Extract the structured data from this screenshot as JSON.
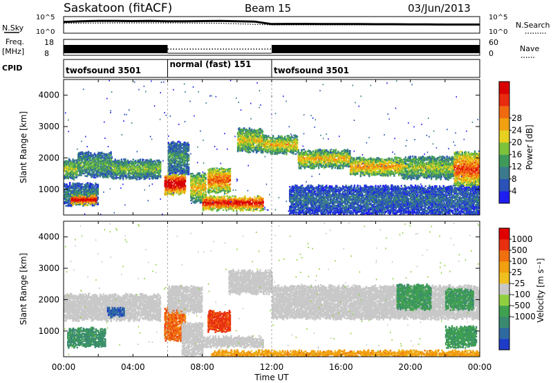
{
  "chart_data": [
    {
      "type": "line",
      "title": "Saskatoon (fitACF)",
      "beam": "Beam 15",
      "date": "03/Jun/2013",
      "left_label": "N.Sky",
      "right_label": "N.Search",
      "left_ticks": [
        "10^5",
        "10^0"
      ],
      "right_ticks": [
        "10^5",
        "10^0"
      ],
      "series": [
        {
          "name": "N.Sky",
          "style": "solid",
          "x": [
            0,
            1,
            2,
            3,
            4,
            5,
            6,
            7,
            8,
            9,
            10,
            11,
            12,
            13,
            14,
            15,
            16,
            17,
            18,
            19,
            20,
            21,
            22,
            23,
            24
          ],
          "values": [
            0.68,
            0.72,
            0.74,
            0.74,
            0.73,
            0.74,
            0.72,
            0.72,
            0.73,
            0.74,
            0.72,
            0.7,
            0.55,
            0.56,
            0.56,
            0.55,
            0.55,
            0.55,
            0.54,
            0.54,
            0.53,
            0.53,
            0.52,
            0.52,
            0.52
          ]
        },
        {
          "name": "N.Search",
          "style": "dotted",
          "x": [
            0,
            3,
            6,
            9,
            12,
            15,
            18,
            21,
            24
          ],
          "values": [
            0.6,
            0.62,
            0.62,
            0.6,
            0.5,
            0.5,
            0.5,
            0.5,
            0.5
          ]
        }
      ]
    },
    {
      "type": "line",
      "left_label": "Freq.",
      "left_unit": "[MHz]",
      "right_label": "Nave",
      "left_ticks": [
        "18",
        "8"
      ],
      "right_ticks": [
        "60",
        "0"
      ],
      "freq_segments": [
        {
          "start": 0,
          "end": 6,
          "style": "solid"
        },
        {
          "start": 6,
          "end": 12,
          "style": "dotted"
        },
        {
          "start": 12,
          "end": 24,
          "style": "solid"
        }
      ]
    },
    {
      "type": "table",
      "label": "CPID",
      "segments": [
        {
          "start": 0,
          "end": 6,
          "label": "twofsound 3501"
        },
        {
          "start": 6,
          "end": 12,
          "label": "normal (fast) 151"
        },
        {
          "start": 12,
          "end": 24,
          "label": "twofsound 3501"
        }
      ]
    },
    {
      "type": "heatmap",
      "parameter": "Power",
      "ylabel": "Slant Range [km]",
      "ylim": [
        180,
        4500
      ],
      "yticks": [
        1000,
        2000,
        3000,
        4000
      ],
      "xlim": [
        0,
        24
      ],
      "colorbar": {
        "label": "Power [dB]",
        "range": [
          0,
          32
        ],
        "ticks": [
          "4",
          "8",
          "12",
          "16",
          "20",
          "24",
          "28"
        ],
        "colors": [
          "#1e1ef0",
          "#2a52b8",
          "#3a7a8c",
          "#3f9a5a",
          "#7cc23a",
          "#e6d020",
          "#f0a010",
          "#f06a10",
          "#e82a10",
          "#d80000"
        ]
      },
      "features": [
        {
          "t0": 0.0,
          "t1": 0.8,
          "r0": 1350,
          "r1": 1900,
          "level": 0.45
        },
        {
          "t0": 0.8,
          "t1": 2.8,
          "r0": 1400,
          "r1": 2150,
          "level": 0.35
        },
        {
          "t0": 2.8,
          "t1": 5.6,
          "r0": 1350,
          "r1": 1900,
          "level": 0.4
        },
        {
          "t0": 0.0,
          "t1": 2.0,
          "r0": 500,
          "r1": 1150,
          "level": 0.25
        },
        {
          "t0": 0.4,
          "t1": 1.9,
          "r0": 520,
          "r1": 780,
          "level": 0.9
        },
        {
          "t0": 5.8,
          "t1": 7.0,
          "r0": 850,
          "r1": 1450,
          "level": 0.95
        },
        {
          "t0": 6.0,
          "t1": 7.2,
          "r0": 1500,
          "r1": 2450,
          "level": 0.3
        },
        {
          "t0": 7.3,
          "t1": 8.2,
          "r0": 600,
          "r1": 1500,
          "level": 0.55
        },
        {
          "t0": 8.3,
          "t1": 9.6,
          "r0": 900,
          "r1": 1650,
          "level": 0.7
        },
        {
          "t0": 8.0,
          "t1": 11.5,
          "r0": 350,
          "r1": 750,
          "level": 0.85
        },
        {
          "t0": 10.0,
          "t1": 11.5,
          "r0": 2200,
          "r1": 2900,
          "level": 0.5
        },
        {
          "t0": 11.5,
          "t1": 13.5,
          "r0": 2150,
          "r1": 2650,
          "level": 0.55
        },
        {
          "t0": 13.5,
          "t1": 16.5,
          "r0": 1700,
          "r1": 2200,
          "level": 0.55
        },
        {
          "t0": 16.5,
          "t1": 19.5,
          "r0": 1450,
          "r1": 1950,
          "level": 0.6
        },
        {
          "t0": 19.5,
          "t1": 22.5,
          "r0": 1350,
          "r1": 2000,
          "level": 0.45
        },
        {
          "t0": 22.5,
          "t1": 24.0,
          "r0": 1100,
          "r1": 2150,
          "level": 0.75
        },
        {
          "t0": 13.0,
          "t1": 24.0,
          "r0": 200,
          "r1": 1100,
          "level": 0.2
        }
      ]
    },
    {
      "type": "heatmap",
      "parameter": "Velocity",
      "ylabel": "Slant Range [km]",
      "xlabel": "Time UT",
      "ylim": [
        180,
        4500
      ],
      "yticks": [
        1000,
        2000,
        3000,
        4000
      ],
      "xlim": [
        0,
        24
      ],
      "xticks": [
        "00:00",
        "04:00",
        "08:00",
        "12:00",
        "16:00",
        "20:00",
        "00:00"
      ],
      "colorbar": {
        "label": "Velocity [m s⁻¹]",
        "ticks": [
          "1000",
          "500",
          "100",
          "25",
          "-25",
          "-100",
          "-500",
          "-1000"
        ],
        "colors": [
          "#1e3cc8",
          "#2e6aa0",
          "#3a8a70",
          "#3fa050",
          "#90d040",
          "#c8c8c8",
          "#f0c020",
          "#f0a010",
          "#f07010",
          "#e83010",
          "#e00000"
        ]
      },
      "features": [
        {
          "t0": 0.0,
          "t1": 5.6,
          "r0": 1350,
          "r1": 2150,
          "level": 0.5
        },
        {
          "t0": 0.2,
          "t1": 2.4,
          "r0": 500,
          "r1": 1050,
          "level": 0.25
        },
        {
          "t0": 2.5,
          "t1": 3.5,
          "r0": 1450,
          "r1": 1700,
          "level": 0.12
        },
        {
          "t0": 5.8,
          "t1": 7.0,
          "r0": 700,
          "r1": 1700,
          "level": 0.78
        },
        {
          "t0": 6.0,
          "t1": 8.0,
          "r0": 1600,
          "r1": 2400,
          "level": 0.5
        },
        {
          "t0": 6.8,
          "t1": 8.0,
          "r0": 200,
          "r1": 1200,
          "level": 0.5
        },
        {
          "t0": 8.3,
          "t1": 9.6,
          "r0": 1000,
          "r1": 1600,
          "level": 0.85
        },
        {
          "t0": 8.0,
          "t1": 11.5,
          "r0": 500,
          "r1": 800,
          "level": 0.5
        },
        {
          "t0": 9.5,
          "t1": 12.0,
          "r0": 2200,
          "r1": 2900,
          "level": 0.5
        },
        {
          "t0": 12.0,
          "t1": 24.0,
          "r0": 1400,
          "r1": 2400,
          "level": 0.5
        },
        {
          "t0": 8.5,
          "t1": 24.0,
          "r0": 180,
          "r1": 330,
          "level": 0.68
        },
        {
          "t0": 19.2,
          "t1": 21.2,
          "r0": 1700,
          "r1": 2450,
          "level": 0.3
        },
        {
          "t0": 22.0,
          "t1": 23.6,
          "r0": 1700,
          "r1": 2300,
          "level": 0.3
        },
        {
          "t0": 22.0,
          "t1": 23.8,
          "r0": 500,
          "r1": 1100,
          "level": 0.3
        }
      ]
    }
  ]
}
